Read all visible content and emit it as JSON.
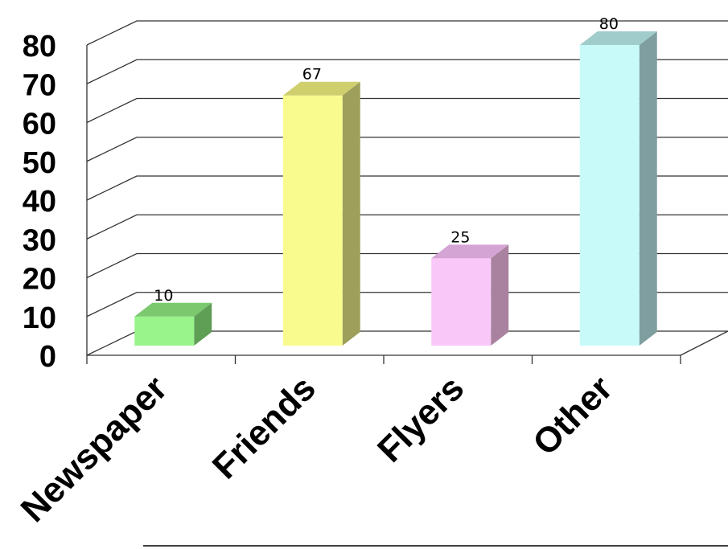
{
  "chart_data": {
    "type": "bar",
    "categories": [
      "Newspaper",
      "Friends",
      "Flyers",
      "Other"
    ],
    "values": [
      10,
      67,
      25,
      80
    ],
    "data_labels": [
      "10",
      "67",
      "25",
      "80"
    ],
    "ylim": [
      0,
      80
    ],
    "y_ticks": [
      "0",
      "10",
      "20",
      "30",
      "40",
      "50",
      "60",
      "70",
      "80"
    ],
    "grid": true,
    "legend": "none",
    "style": "3d",
    "colors": {
      "front": [
        "#99f48c",
        "#fafb8e",
        "#f9c8f9",
        "#c8fafa"
      ],
      "top": [
        "#7bc86e",
        "#cfcf6e",
        "#d4a4d4",
        "#a0cccc"
      ],
      "side": [
        "#5e9e55",
        "#9f9f5c",
        "#a9829f",
        "#7f9e9f"
      ]
    }
  }
}
